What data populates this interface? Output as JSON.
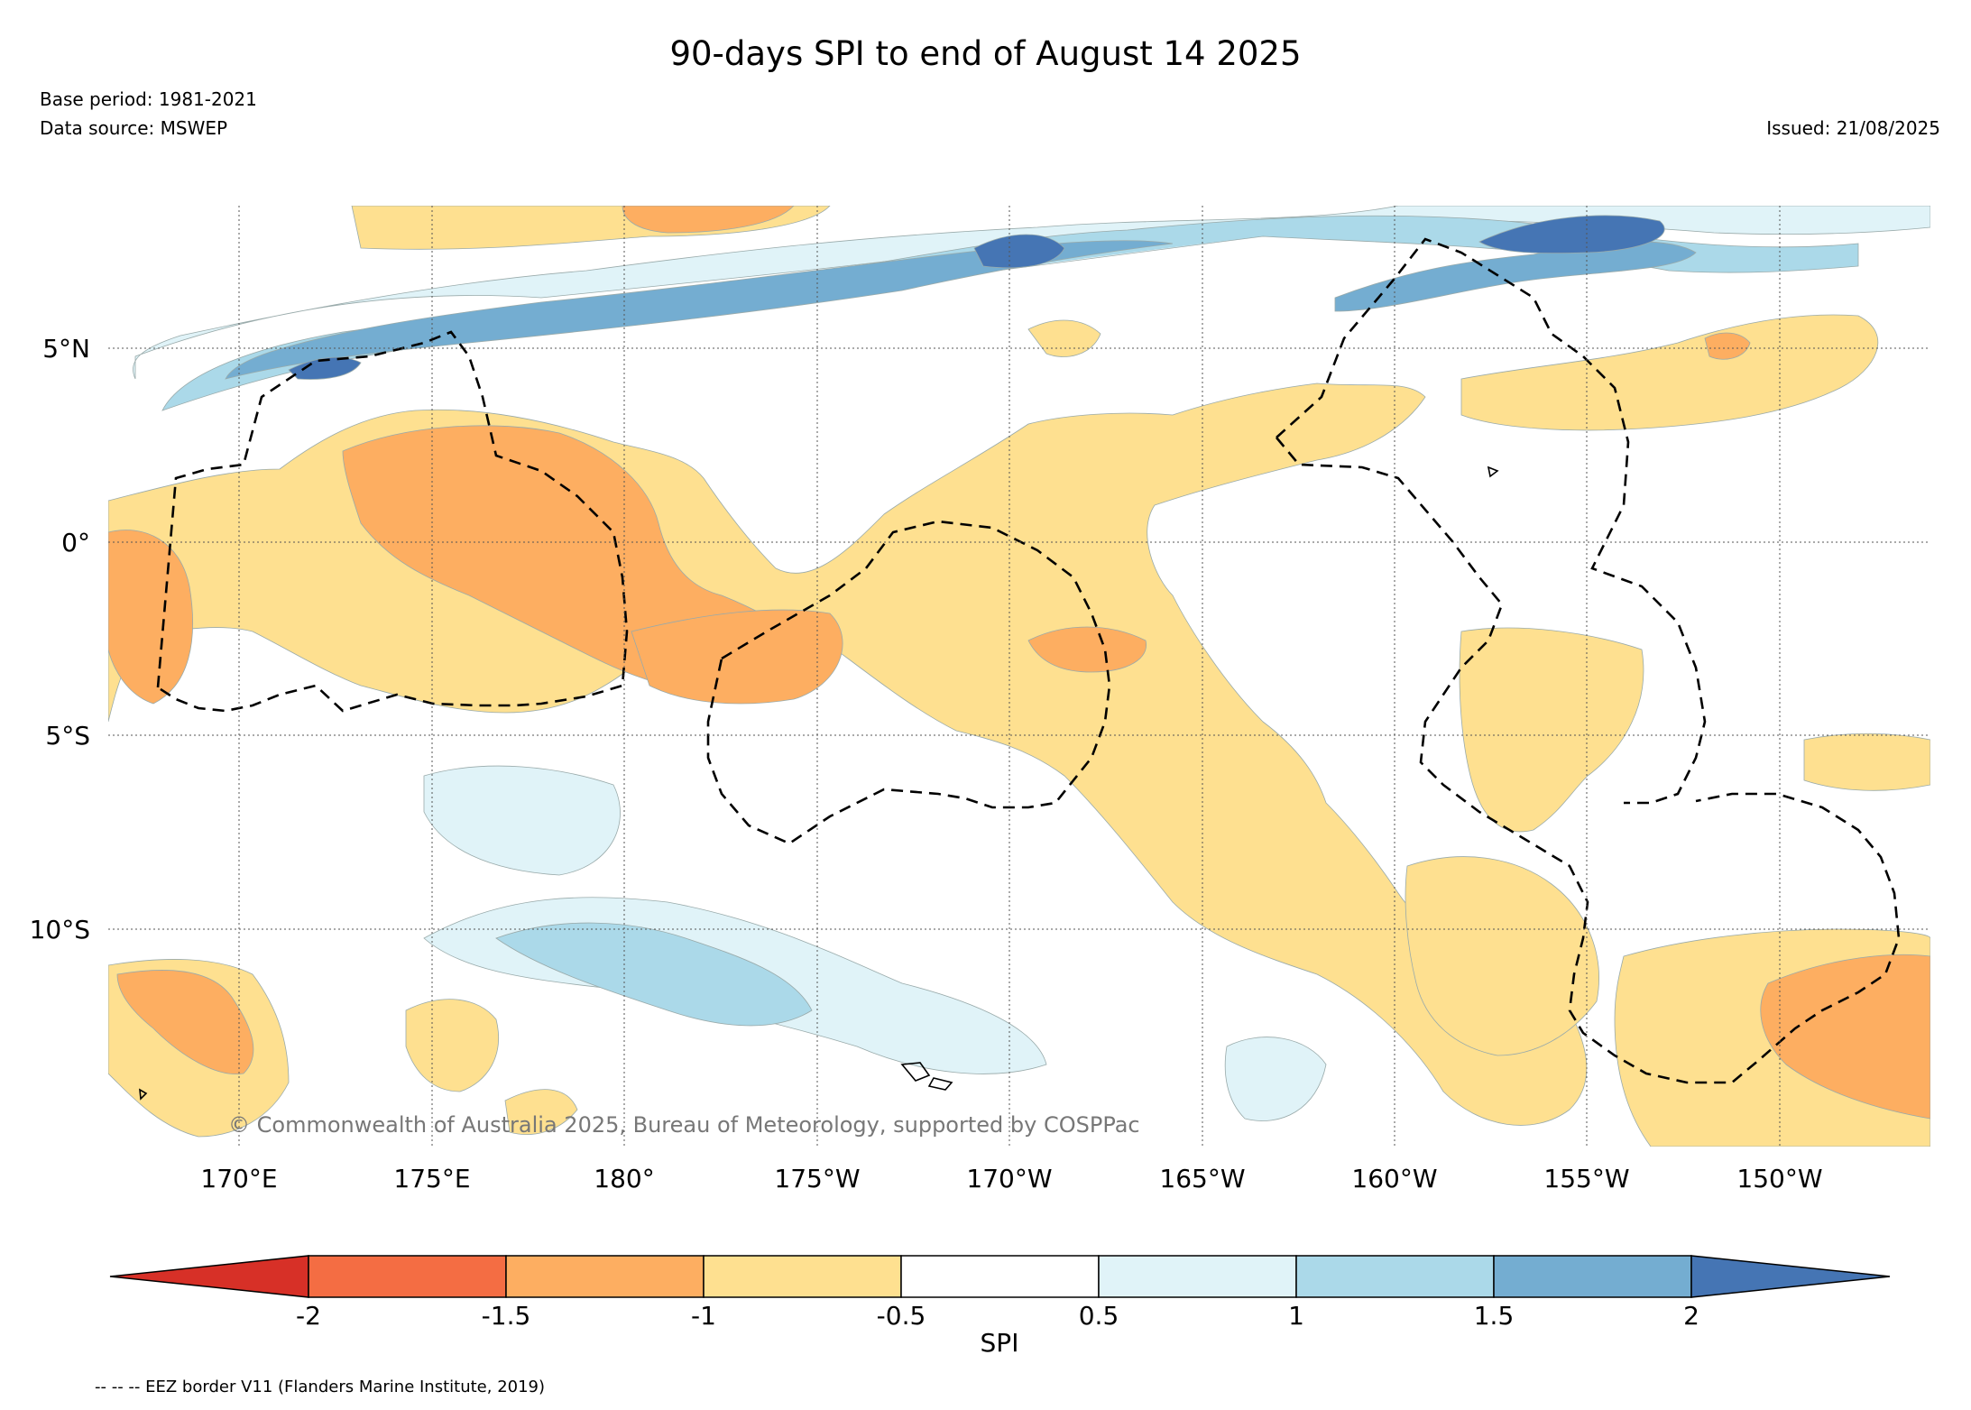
{
  "header": {
    "title": "90-days SPI to end of August 14 2025",
    "base_period": "Base period: 1981-2021",
    "data_source": "Data source: MSWEP",
    "issued": "Issued: 21/08/2025"
  },
  "map": {
    "lon_labels": [
      "170°E",
      "175°E",
      "180°",
      "175°W",
      "170°W",
      "165°W",
      "160°W",
      "155°W",
      "150°W"
    ],
    "lat_labels": [
      "5°N",
      "0°",
      "5°S",
      "10°S"
    ],
    "copyright": "© Commonwealth of Australia 2025, Bureau of Meteorology, supported by COSPPac"
  },
  "colorbar": {
    "label": "SPI",
    "ticks": [
      "-2",
      "-1.5",
      "-1",
      "-0.5",
      "0.5",
      "1",
      "1.5",
      "2"
    ],
    "colors": [
      "#d73027",
      "#f46d43",
      "#fdae61",
      "#fee090",
      "#ffffff",
      "#e0f3f8",
      "#abd9e9",
      "#74add1",
      "#4575b4"
    ]
  },
  "footer": {
    "eez_note": "-- -- -- EEZ border V11 (Flanders Marine Institute, 2019)"
  }
}
